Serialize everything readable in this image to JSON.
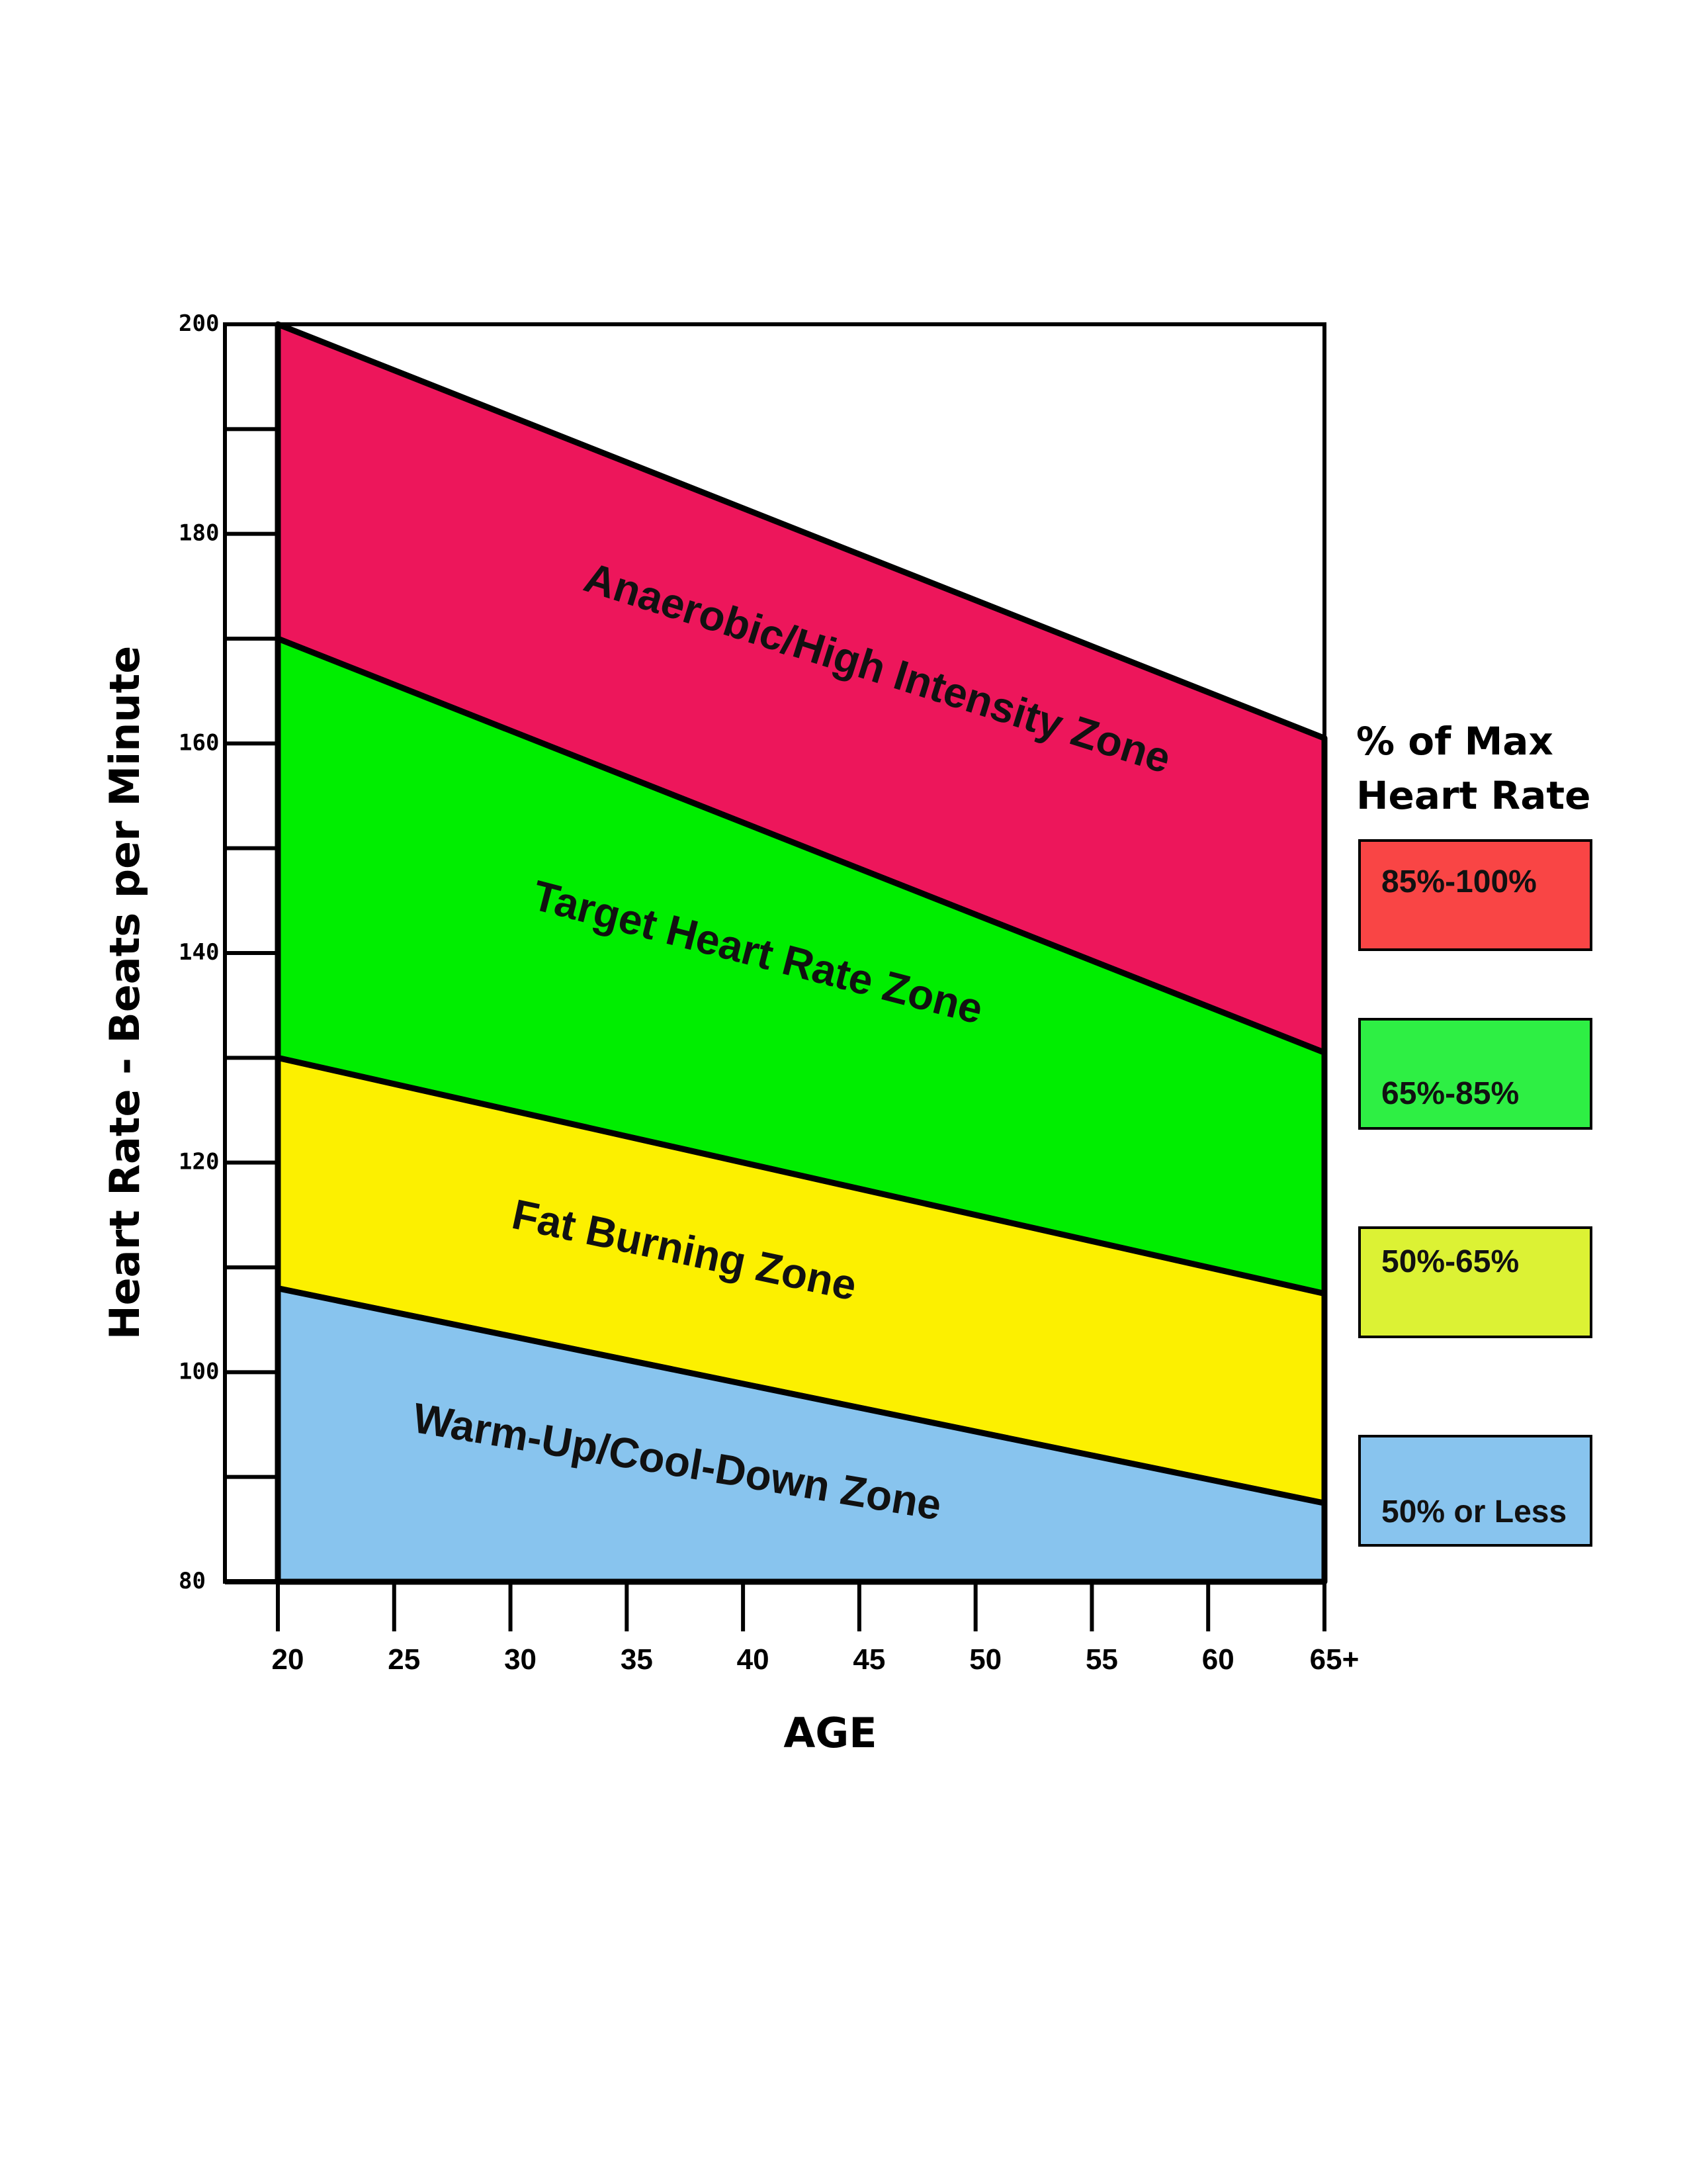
{
  "chart_data": {
    "type": "area",
    "title": "",
    "xlabel": "AGE",
    "ylabel": "Heart Rate - Beats per Minute",
    "ylim": [
      80,
      200
    ],
    "x_ticks": [
      "20",
      "25",
      "30",
      "35",
      "40",
      "45",
      "50",
      "55",
      "60",
      "65+"
    ],
    "x_values": [
      20,
      65
    ],
    "y_tick_labels": [
      200,
      180,
      160,
      140,
      120,
      100,
      80
    ],
    "y_minor_ticks": [
      190,
      170,
      150,
      130,
      110,
      90
    ],
    "zones": [
      {
        "name": "Anaerobic/High Intensity Zone",
        "lower": [
          170,
          130.5
        ],
        "upper": [
          200,
          160.5
        ],
        "color": "#ed165b"
      },
      {
        "name": "Target Heart Rate Zone",
        "lower": [
          130,
          107.5
        ],
        "upper": [
          170,
          130.5
        ],
        "color": "#00ee00"
      },
      {
        "name": "Fat Burning Zone",
        "lower": [
          108,
          87.5
        ],
        "upper": [
          130,
          107.5
        ],
        "color": "#fcf000"
      },
      {
        "name": "Warm-Up/Cool-Down Zone",
        "lower": [
          80,
          80
        ],
        "upper": [
          108,
          87.5
        ],
        "color": "#88c4ee"
      }
    ],
    "legend": {
      "title_line1": "% of Max",
      "title_line2": "Heart Rate",
      "items": [
        {
          "label": "85%-100%",
          "color": "#f94545"
        },
        {
          "label": "65%-85%",
          "color": "#2eef44"
        },
        {
          "label": "50%-65%",
          "color": "#dcf234"
        },
        {
          "label": "50% or Less",
          "color": "#88c4ee"
        }
      ]
    }
  }
}
